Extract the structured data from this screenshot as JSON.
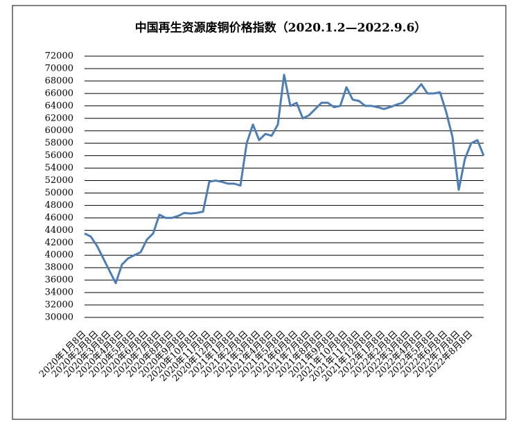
{
  "chart_data": {
    "type": "line",
    "title": "中国再生资源废铜价格指数（2020.1.2—2022.9.6）",
    "categories": [
      "2020年1月8日",
      null,
      "2020年2月8日",
      null,
      "2020年3月8日",
      null,
      "2020年4月8日",
      null,
      "2020年5月8日",
      null,
      "2020年6月8日",
      null,
      "2020年7月8日",
      null,
      "2020年8月8日",
      null,
      "2020年9月8日",
      null,
      "2020年10月8日",
      null,
      "2020年11月8日",
      null,
      "2020年12月8日",
      null,
      "2021年1月8日",
      null,
      "2021年2月8日",
      null,
      "2021年3月8日",
      null,
      "2021年4月8日",
      null,
      "2021年5月8日",
      null,
      "2021年6月8日",
      null,
      "2021年7月8日",
      null,
      "2021年8月8日",
      null,
      "2021年9月8日",
      null,
      "2021年10月8日",
      null,
      "2021年11月8日",
      null,
      "2021年12月8日",
      null,
      "2022年1月8日",
      null,
      "2022年2月8日",
      null,
      "2022年3月8日",
      null,
      "2022年4月8日",
      null,
      "2022年5月8日",
      null,
      "2022年6月8日",
      null,
      "2022年7月8日",
      null,
      "2022年8月8日",
      null,
      null
    ],
    "series": [
      {
        "name": "中国再生资源废铜价格指数",
        "color": "#4a7ebb",
        "values": [
          43500,
          43000,
          41500,
          39500,
          37500,
          35500,
          38500,
          39500,
          40000,
          40500,
          42500,
          43500,
          46500,
          46000,
          46000,
          46300,
          46800,
          46700,
          46800,
          47000,
          51800,
          52000,
          51800,
          51500,
          51500,
          51200,
          58000,
          61000,
          58500,
          59500,
          59200,
          61000,
          69000,
          64000,
          64500,
          62000,
          62500,
          63500,
          64500,
          64500,
          63800,
          64000,
          67000,
          65000,
          64800,
          64000,
          64000,
          63800,
          63500,
          63800,
          64200,
          64500,
          65500,
          66300,
          67500,
          66000,
          66000,
          66200,
          63000,
          59000,
          50500,
          55500,
          58000,
          58500,
          56000
        ]
      }
    ],
    "ylim": [
      30000,
      72000
    ],
    "yticks": [
      30000,
      32000,
      34000,
      36000,
      38000,
      40000,
      42000,
      44000,
      46000,
      48000,
      50000,
      52000,
      54000,
      56000,
      58000,
      60000,
      62000,
      64000,
      66000,
      68000,
      70000,
      72000
    ],
    "grid": true
  }
}
